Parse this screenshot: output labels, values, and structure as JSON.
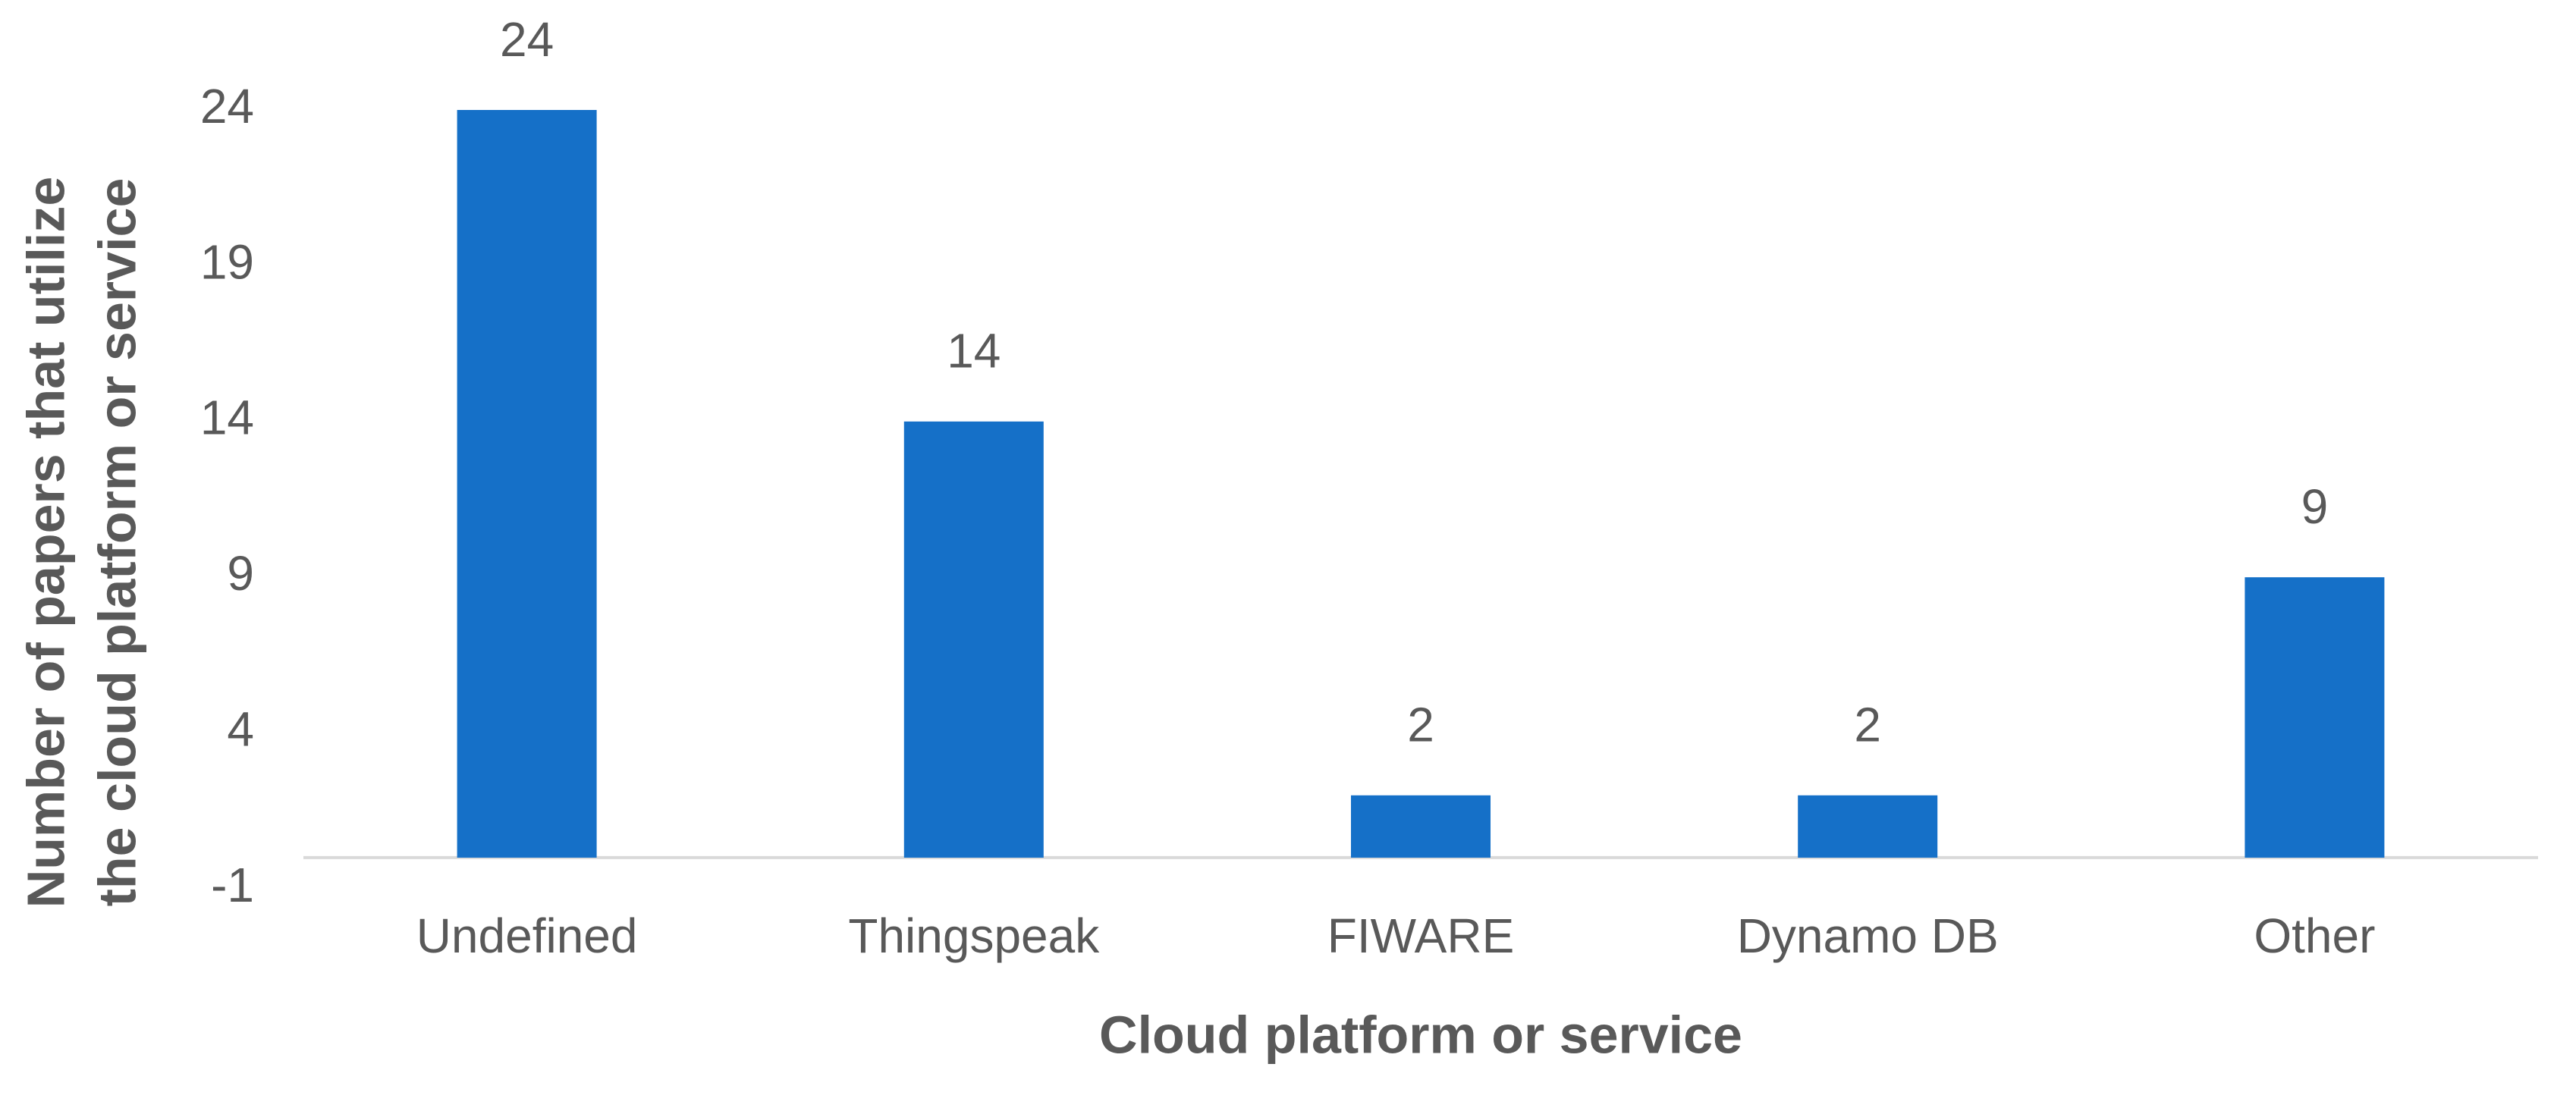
{
  "chart_data": {
    "type": "bar",
    "x_label": "Cloud platform or service",
    "y_label": [
      "Number of papers that utilize",
      "the cloud platform or service"
    ],
    "categories": [
      "Undefined",
      "Thingspeak",
      "FIWARE",
      "Dynamo DB",
      "Other"
    ],
    "values": [
      24,
      14,
      2,
      2,
      9
    ],
    "color": "#1570c8",
    "ylim": [
      -1,
      24
    ],
    "yticks": [
      -1,
      4,
      9,
      14,
      19,
      24
    ],
    "grid": false
  }
}
